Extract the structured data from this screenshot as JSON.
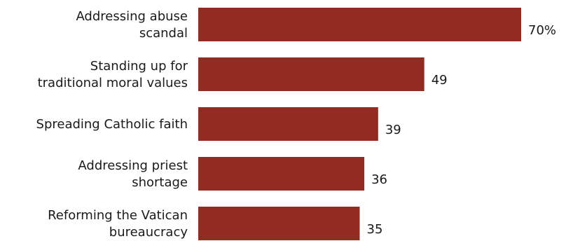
{
  "chart_data": {
    "type": "bar",
    "orientation": "horizontal",
    "categories": [
      [
        "Addressing abuse",
        "scandal"
      ],
      [
        "Standing up for",
        "traditional moral values"
      ],
      [
        "Spreading Catholic faith"
      ],
      [
        "Addressing priest",
        "shortage"
      ],
      [
        "Reforming the Vatican",
        "bureaucracy"
      ]
    ],
    "values": [
      70,
      49,
      39,
      36,
      35
    ],
    "value_labels": [
      "70%",
      "49",
      "39",
      "36",
      "35"
    ],
    "bar_color": "#922b21",
    "xlim": [
      0,
      70
    ],
    "grid": false,
    "legend": "none"
  }
}
